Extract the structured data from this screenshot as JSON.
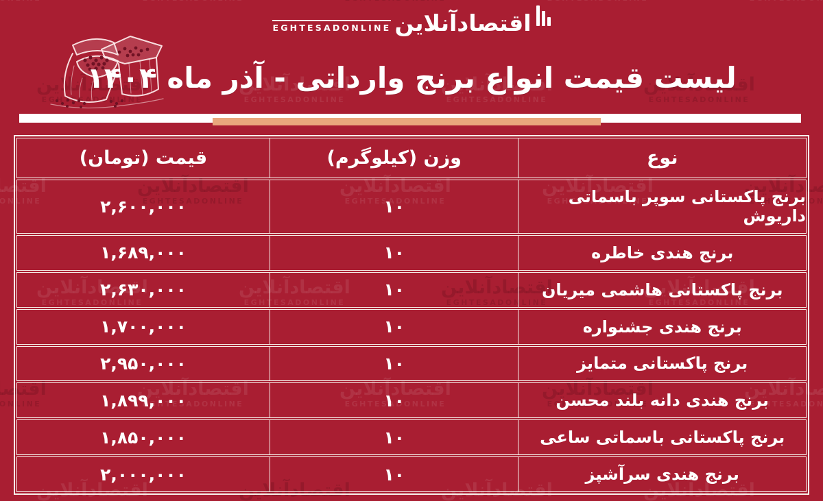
{
  "page": {
    "background_color": "#a91e32",
    "accent_color": "#e9a77c",
    "border_color": "#f7f0ea",
    "text_color": "#ffffff"
  },
  "logo": {
    "persian": "اقتصادآنلاین",
    "latin": "EGHTESADONLINE"
  },
  "watermark": {
    "persian": "اقتصادآنلاین",
    "latin": "EGHTESADONLINE"
  },
  "icons": {
    "rice_sack": "rice-sack-sketch"
  },
  "title": "لیست قیمت انواع برنج وارداتی - آذر ماه ۱۴۰۴",
  "table": {
    "columns": [
      {
        "key": "type",
        "label": "نوع"
      },
      {
        "key": "weight",
        "label": "وزن (کیلوگرم)"
      },
      {
        "key": "price",
        "label": "قیمت (تومان)"
      }
    ],
    "rows": [
      {
        "type": "برنج پاکستانی سوپر باسماتی داریوش",
        "weight": "۱۰",
        "price": "۲,۶۰۰,۰۰۰"
      },
      {
        "type": "برنج هندی خاطره",
        "weight": "۱۰",
        "price": "۱,۶۸۹,۰۰۰"
      },
      {
        "type": "برنج پاکستانی هاشمی میریان",
        "weight": "۱۰",
        "price": "۲,۶۳۰,۰۰۰"
      },
      {
        "type": "برنج هندی جشنواره",
        "weight": "۱۰",
        "price": "۱,۷۰۰,۰۰۰"
      },
      {
        "type": "برنج پاکستانی متمایز",
        "weight": "۱۰",
        "price": "۲,۹۵۰,۰۰۰"
      },
      {
        "type": "برنج هندی دانه بلند محسن",
        "weight": "۱۰",
        "price": "۱,۸۹۹,۰۰۰"
      },
      {
        "type": "برنج پاکستانی باسماتی ساعی",
        "weight": "۱۰",
        "price": "۱,۸۵۰,۰۰۰"
      },
      {
        "type": "برنج هندی سرآشپز",
        "weight": "۱۰",
        "price": "۲,۰۰۰,۰۰۰"
      }
    ]
  }
}
